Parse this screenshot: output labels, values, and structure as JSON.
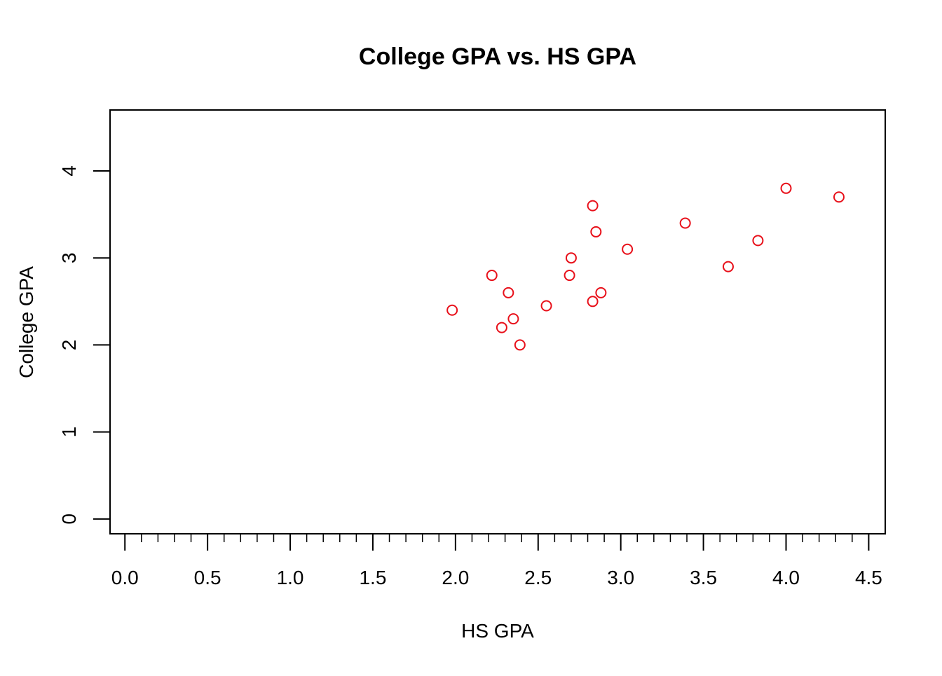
{
  "chart_data": {
    "type": "scatter",
    "title": "College GPA vs. HS GPA",
    "xlabel": "HS GPA",
    "ylabel": "College GPA",
    "xlim": [
      -0.09,
      4.6
    ],
    "ylim": [
      -0.17,
      4.7
    ],
    "x_ticks": [
      "0.0",
      "0.5",
      "1.0",
      "1.5",
      "2.0",
      "2.5",
      "3.0",
      "3.5",
      "4.0",
      "4.5"
    ],
    "x_tick_values": [
      0,
      0.5,
      1,
      1.5,
      2,
      2.5,
      3,
      3.5,
      4,
      4.5
    ],
    "x_minor_tick_step": 0.1,
    "y_ticks": [
      "0",
      "1",
      "2",
      "3",
      "4"
    ],
    "y_tick_values": [
      0,
      1,
      2,
      3,
      4
    ],
    "grid": false,
    "marker": "open-circle",
    "point_color": "#e8101a",
    "points": [
      {
        "x": 1.98,
        "y": 2.4
      },
      {
        "x": 2.22,
        "y": 2.8
      },
      {
        "x": 2.28,
        "y": 2.2
      },
      {
        "x": 2.32,
        "y": 2.6
      },
      {
        "x": 2.35,
        "y": 2.3
      },
      {
        "x": 2.39,
        "y": 2.0
      },
      {
        "x": 2.55,
        "y": 2.45
      },
      {
        "x": 2.69,
        "y": 2.8
      },
      {
        "x": 2.7,
        "y": 3.0
      },
      {
        "x": 2.83,
        "y": 3.6
      },
      {
        "x": 2.83,
        "y": 2.5
      },
      {
        "x": 2.85,
        "y": 3.3
      },
      {
        "x": 2.88,
        "y": 2.6
      },
      {
        "x": 3.04,
        "y": 3.1
      },
      {
        "x": 3.39,
        "y": 3.4
      },
      {
        "x": 3.65,
        "y": 2.9
      },
      {
        "x": 3.83,
        "y": 3.2
      },
      {
        "x": 4.0,
        "y": 3.8
      },
      {
        "x": 4.32,
        "y": 3.7
      }
    ]
  }
}
